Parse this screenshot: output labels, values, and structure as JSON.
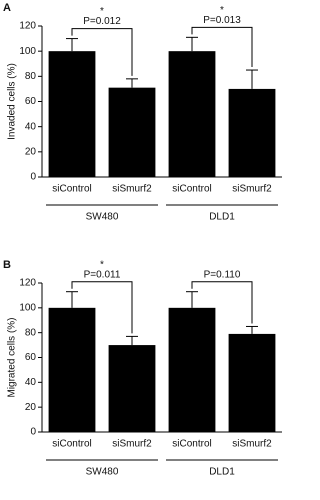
{
  "chart_data": [
    {
      "type": "bar",
      "panel_label": "A",
      "ylabel": "Invaded cells (%)",
      "categories": [
        "siControl",
        "siSmurf2",
        "siControl",
        "siSmurf2"
      ],
      "groups": [
        "SW480",
        "DLD1"
      ],
      "values": [
        100,
        71,
        100,
        70
      ],
      "errors": [
        10,
        7,
        11,
        15
      ],
      "color": "#000000",
      "ylim": [
        0,
        120
      ],
      "yticks": [
        0,
        20,
        40,
        60,
        80,
        100,
        120
      ],
      "annotations": [
        {
          "star": "*",
          "label": "P=0.012"
        },
        {
          "star": "*",
          "label": "P=0.013"
        }
      ]
    },
    {
      "type": "bar",
      "panel_label": "B",
      "ylabel": "Migrated cells (%)",
      "categories": [
        "siControl",
        "siSmurf2",
        "siControl",
        "siSmurf2"
      ],
      "groups": [
        "SW480",
        "DLD1"
      ],
      "values": [
        100,
        70,
        100,
        79
      ],
      "errors": [
        13,
        7,
        13,
        6
      ],
      "color": "#000000",
      "ylim": [
        0,
        120
      ],
      "yticks": [
        0,
        20,
        40,
        60,
        80,
        100,
        120
      ],
      "annotations": [
        {
          "star": "*",
          "label": "P=0.011"
        },
        {
          "label": "P=0.110"
        }
      ]
    }
  ]
}
